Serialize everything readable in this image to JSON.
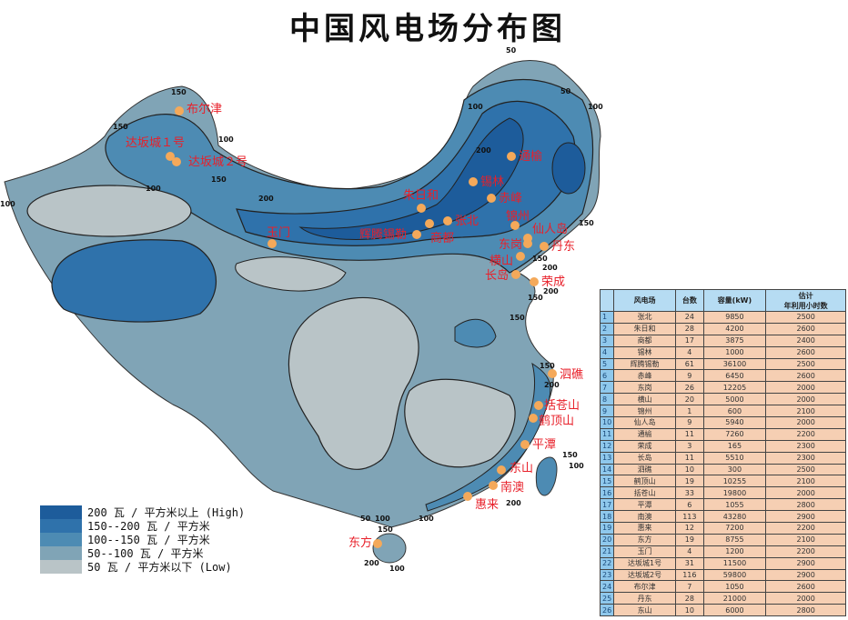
{
  "title": "中国风电场分布图",
  "colors": {
    "high": "#1d5c9b",
    "c150_200": "#2f72ab",
    "c100_150": "#4d8bb3",
    "c50_100": "#80a4b6",
    "low": "#b9c4c7",
    "site_dot": "#f4a95a",
    "site_label": "#e8202a"
  },
  "legend": [
    {
      "label": "200 瓦 / 平方米以上 (High)",
      "color": "#1d5c9b"
    },
    {
      "label": "150--200 瓦 / 平方米",
      "color": "#2f72ab"
    },
    {
      "label": "100--150 瓦 / 平方米",
      "color": "#4d8bb3"
    },
    {
      "label": "50--100 瓦 / 平方米",
      "color": "#80a4b6"
    },
    {
      "label": "50 瓦 / 平方米以下 (Low)",
      "color": "#b9c4c7"
    }
  ],
  "sites": [
    "布尔津",
    "达坂城１号",
    "达坂城２号",
    "玉门",
    "朱日和",
    "辉腾锡勒",
    "商都",
    "张北",
    "锡林",
    "通榆",
    "赤峰",
    "锦州",
    "仙人岛",
    "东岗",
    "丹东",
    "横山",
    "长岛",
    "荣成",
    "泗礁",
    "括苍山",
    "鹤顶山",
    "平潭",
    "东山",
    "南澳",
    "惠来",
    "东方"
  ],
  "contour_labels": [
    "150",
    "150",
    "100",
    "150",
    "100",
    "200",
    "100",
    "50",
    "50",
    "100",
    "100",
    "200",
    "150",
    "150",
    "200",
    "150",
    "200",
    "150",
    "150",
    "200",
    "150",
    "100",
    "200",
    "50",
    "100",
    "150",
    "200",
    "100",
    "100"
  ],
  "table": {
    "headers": [
      "",
      "风电场",
      "台数",
      "容量(kW)",
      "估计\n年利用小时数"
    ],
    "rows": [
      [
        "1",
        "张北",
        "24",
        "9850",
        "2500"
      ],
      [
        "2",
        "朱日和",
        "28",
        "4200",
        "2600"
      ],
      [
        "3",
        "商都",
        "17",
        "3875",
        "2400"
      ],
      [
        "4",
        "锡林",
        "4",
        "1000",
        "2600"
      ],
      [
        "5",
        "辉腾锡勒",
        "61",
        "36100",
        "2500"
      ],
      [
        "6",
        "赤峰",
        "9",
        "6450",
        "2600"
      ],
      [
        "7",
        "东岗",
        "26",
        "12205",
        "2000"
      ],
      [
        "8",
        "横山",
        "20",
        "5000",
        "2000"
      ],
      [
        "9",
        "锦州",
        "1",
        "600",
        "2100"
      ],
      [
        "10",
        "仙人岛",
        "9",
        "5940",
        "2000"
      ],
      [
        "11",
        "通榆",
        "11",
        "7260",
        "2200"
      ],
      [
        "12",
        "荣成",
        "3",
        "165",
        "2300"
      ],
      [
        "13",
        "长岛",
        "11",
        "5510",
        "2300"
      ],
      [
        "14",
        "泗礁",
        "10",
        "300",
        "2500"
      ],
      [
        "15",
        "鹤顶山",
        "19",
        "10255",
        "2100"
      ],
      [
        "16",
        "括苍山",
        "33",
        "19800",
        "2000"
      ],
      [
        "17",
        "平潭",
        "6",
        "1055",
        "2800"
      ],
      [
        "18",
        "南澳",
        "113",
        "43280",
        "2900"
      ],
      [
        "19",
        "惠来",
        "12",
        "7200",
        "2200"
      ],
      [
        "20",
        "东方",
        "19",
        "8755",
        "2100"
      ],
      [
        "21",
        "玉门",
        "4",
        "1200",
        "2200"
      ],
      [
        "22",
        "达坂城1号",
        "31",
        "11500",
        "2900"
      ],
      [
        "23",
        "达坂城2号",
        "116",
        "59800",
        "2900"
      ],
      [
        "24",
        "布尔津",
        "7",
        "1050",
        "2600"
      ],
      [
        "25",
        "丹东",
        "28",
        "21000",
        "2000"
      ],
      [
        "26",
        "东山",
        "10",
        "6000",
        "2800"
      ]
    ]
  }
}
